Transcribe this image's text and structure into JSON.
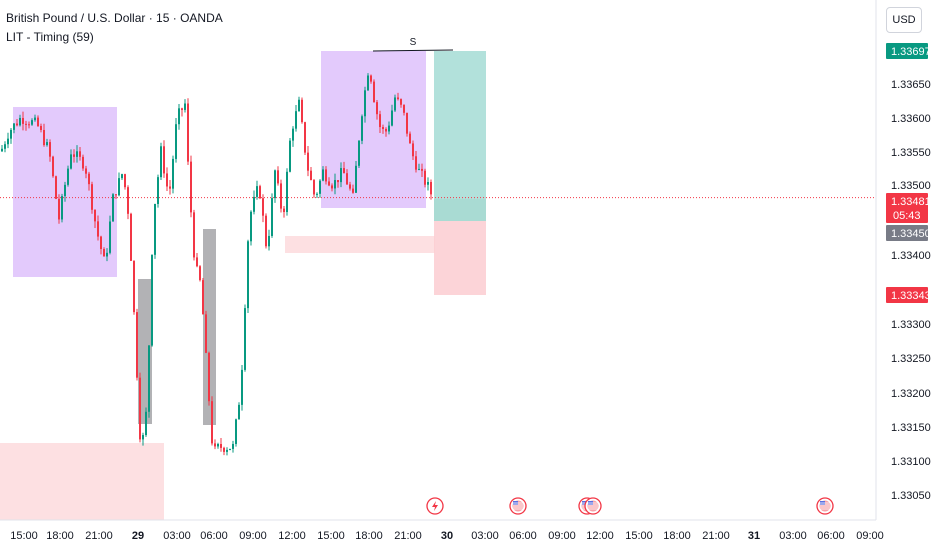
{
  "header": {
    "symbol_line": "British Pound / U.S. Dollar · 15 · OANDA",
    "indicator_line": "LIT - Timing (59)",
    "currency_button": "USD"
  },
  "chart_data": {
    "type": "candlestick",
    "symbol": "British Pound / U.S. Dollar",
    "timeframe": "15",
    "source": "OANDA",
    "ylim": [
      1.3302,
      1.3372
    ],
    "y_ticks": [
      "1.33650",
      "1.33600",
      "1.33550",
      "1.33500",
      "1.33400",
      "1.33300",
      "1.33250",
      "1.33200",
      "1.33150",
      "1.33100",
      "1.33050"
    ],
    "x_ticks": [
      "15:00",
      "18:00",
      "21:00",
      "29",
      "03:00",
      "06:00",
      "09:00",
      "12:00",
      "15:00",
      "18:00",
      "21:00",
      "30",
      "03:00",
      "06:00",
      "09:00",
      "12:00",
      "15:00",
      "18:00",
      "21:00",
      "31",
      "03:00",
      "06:00",
      "09:00"
    ],
    "price_labels": [
      {
        "value": "1.33697",
        "price": 1.33697,
        "color": "#089981"
      },
      {
        "value": "1.33481",
        "countdown": "05:43",
        "price": 1.33481,
        "color": "#f23645"
      },
      {
        "value": "1.33450",
        "price": 1.3345,
        "color": "#787b86"
      },
      {
        "value": "1.33343",
        "price": 1.33343,
        "color": "#f23645"
      }
    ],
    "last_price": 1.33481,
    "swing_marker": "S",
    "event_icons": [
      "lightning",
      "us-flag",
      "us-flag",
      "us-flag",
      "us-flag"
    ],
    "colors": {
      "up": "#089981",
      "down": "#f23645",
      "zone_purple": "#d9b8fb",
      "zone_gray": "#a5a5a8",
      "zone_pink": "#fcd5d8",
      "target_green": "#a5dcd5",
      "stop_red": "#fbcdd1"
    }
  }
}
